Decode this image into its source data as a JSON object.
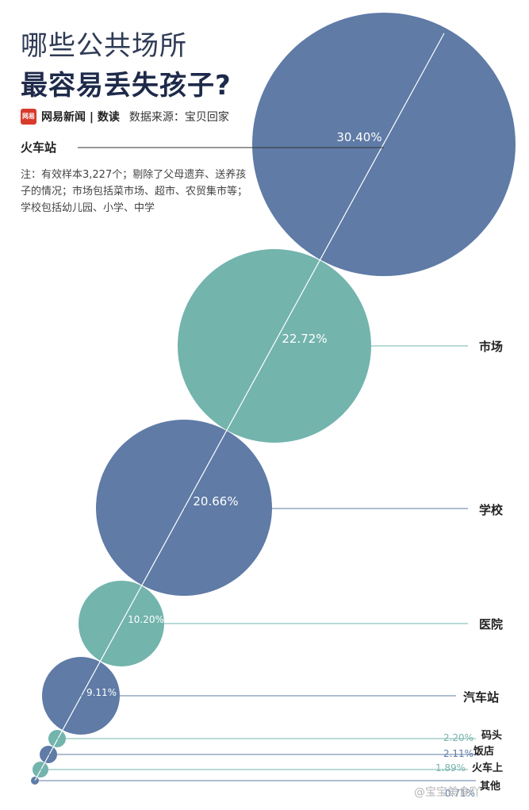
{
  "header": {
    "title_line1": "哪些公共场所",
    "title_line2": "最容易丢失孩子?",
    "logo_text": "网易",
    "brand": "网易新闻 | 数读",
    "source": "数据来源：宝贝回家"
  },
  "note": "注：有效样本3,227个；剔除了父母遗弃、送养孩子的情况；市场包括菜市场、超市、农贸集市等；学校包括幼儿园、小学、中学",
  "watermark": "@宝宝美食吖",
  "colors": {
    "blue": "#5f7ba6",
    "teal": "#73b4ad",
    "title": "#1e2a4a"
  },
  "chart_data": {
    "type": "bubble",
    "unit": "%",
    "categories": [
      "火车站",
      "市场",
      "学校",
      "医院",
      "汽车站",
      "码头",
      "饭店",
      "火车上",
      "其他"
    ],
    "values": [
      30.4,
      22.72,
      20.66,
      10.2,
      9.11,
      2.2,
      2.11,
      1.89,
      0.71
    ],
    "labels": [
      "30.40%",
      "22.72%",
      "20.66%",
      "10.20%",
      "9.11%",
      "2.20%",
      "2.11%",
      "1.89%",
      "0.71%"
    ]
  }
}
